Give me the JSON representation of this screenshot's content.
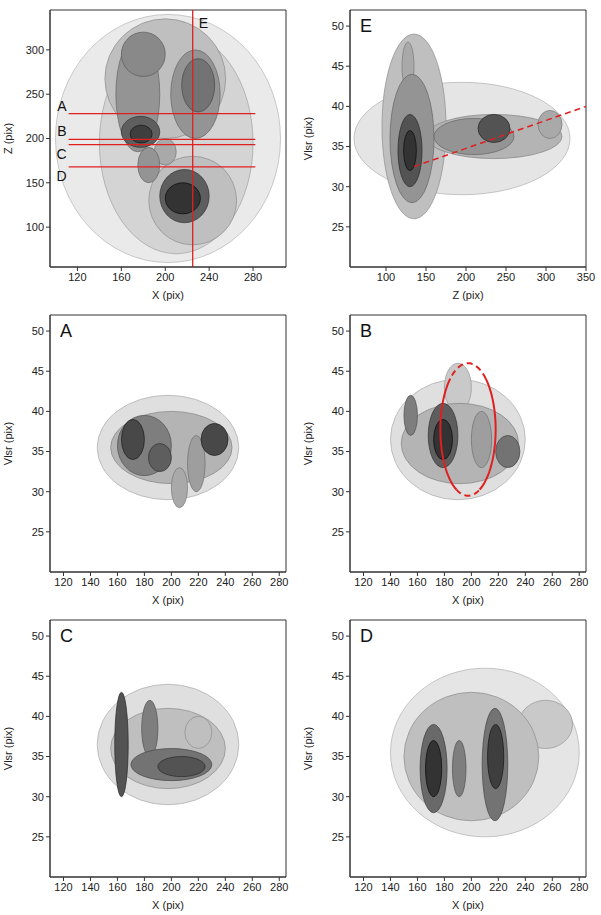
{
  "chart_data": [
    {
      "type": "map",
      "x_label": "X (pix)",
      "y_label": "Z (pix)",
      "xlim": [
        95,
        310
      ],
      "ylim": [
        55,
        345
      ],
      "xticks": [
        120,
        160,
        200,
        240,
        280
      ],
      "yticks": [
        100,
        150,
        200,
        250,
        300
      ],
      "emission": [
        {
          "x": [
            100,
            305
          ],
          "y": [
            60,
            340
          ],
          "intensity": 0.1
        },
        {
          "x": [
            140,
            280
          ],
          "y": [
            70,
            320
          ],
          "intensity": 0.2
        },
        {
          "x": [
            145,
            255
          ],
          "y": [
            200,
            335
          ],
          "intensity": 0.3
        },
        {
          "x": [
            185,
            265
          ],
          "y": [
            80,
            180
          ],
          "intensity": 0.3
        },
        {
          "x": [
            190,
            210
          ],
          "y": [
            170,
            200
          ],
          "intensity": 0.4
        },
        {
          "x": [
            175,
            195
          ],
          "y": [
            150,
            190
          ],
          "intensity": 0.5
        },
        {
          "x": [
            155,
            195
          ],
          "y": [
            185,
            315
          ],
          "intensity": 0.5
        },
        {
          "x": [
            205,
            250
          ],
          "y": [
            200,
            300
          ],
          "intensity": 0.5
        },
        {
          "x": [
            160,
            200
          ],
          "y": [
            270,
            320
          ],
          "intensity": 0.55
        },
        {
          "x": [
            215,
            245
          ],
          "y": [
            230,
            290
          ],
          "intensity": 0.65
        },
        {
          "x": [
            160,
            195
          ],
          "y": [
            190,
            225
          ],
          "intensity": 0.75
        },
        {
          "x": [
            195,
            240
          ],
          "y": [
            105,
            165
          ],
          "intensity": 0.75
        },
        {
          "x": [
            168,
            188
          ],
          "y": [
            195,
            215
          ],
          "intensity": 0.9
        },
        {
          "x": [
            200,
            232
          ],
          "y": [
            115,
            150
          ],
          "intensity": 0.95
        }
      ],
      "cuts": [
        {
          "label": "A",
          "axis": "y",
          "value": 228,
          "extent": [
            112,
            282
          ],
          "color": "#e02020"
        },
        {
          "label": "B",
          "axis": "y",
          "value": 199,
          "extent": [
            112,
            282
          ],
          "color": "#e02020"
        },
        {
          "label": "C",
          "axis": "y",
          "value": 193,
          "extent": [
            112,
            282
          ],
          "color": "#e02020"
        },
        {
          "label": "D",
          "axis": "y",
          "value": 168,
          "extent": [
            112,
            282
          ],
          "color": "#e02020"
        },
        {
          "label": "E",
          "axis": "x",
          "value": 225,
          "color": "#e02020"
        }
      ]
    },
    {
      "type": "pv_diagram",
      "label": "E",
      "x_label": "Z (pix)",
      "y_label": "Vlsr (pix)",
      "xlim": [
        55,
        350
      ],
      "ylim": [
        20,
        52
      ],
      "xticks": [
        100,
        150,
        200,
        250,
        300,
        350
      ],
      "yticks": [
        25,
        30,
        35,
        40,
        45,
        50
      ],
      "emission": [
        {
          "x": [
            60,
            330
          ],
          "y": [
            29,
            43
          ],
          "intensity": 0.12
        },
        {
          "x": [
            95,
            175
          ],
          "y": [
            26,
            49
          ],
          "intensity": 0.3
        },
        {
          "x": [
            150,
            320
          ],
          "y": [
            33.5,
            39
          ],
          "intensity": 0.35
        },
        {
          "x": [
            120,
            135
          ],
          "y": [
            42,
            48
          ],
          "intensity": 0.4
        },
        {
          "x": [
            290,
            320
          ],
          "y": [
            36,
            39.5
          ],
          "intensity": 0.4
        },
        {
          "x": [
            105,
            160
          ],
          "y": [
            28,
            44
          ],
          "intensity": 0.5
        },
        {
          "x": [
            160,
            260
          ],
          "y": [
            34,
            38.5
          ],
          "intensity": 0.5
        },
        {
          "x": [
            115,
            145
          ],
          "y": [
            30,
            39
          ],
          "intensity": 0.8
        },
        {
          "x": [
            215,
            255
          ],
          "y": [
            35.5,
            39
          ],
          "intensity": 0.8
        },
        {
          "x": [
            122,
            138
          ],
          "y": [
            32,
            37
          ],
          "intensity": 0.95
        }
      ],
      "lines": [
        {
          "x": [
            135,
            350
          ],
          "y": [
            32.5,
            40
          ],
          "color": "#e02020",
          "line_style": "dashed"
        }
      ]
    },
    {
      "type": "pv_diagram",
      "label": "A",
      "x_label": "X (pix)",
      "y_label": "Vlsr (pix)",
      "xlim": [
        110,
        285
      ],
      "ylim": [
        20,
        52
      ],
      "xticks": [
        120,
        140,
        160,
        180,
        200,
        220,
        240,
        260,
        280
      ],
      "yticks": [
        25,
        30,
        35,
        40,
        45,
        50
      ],
      "emission": [
        {
          "x": [
            145,
            250
          ],
          "y": [
            29,
            42
          ],
          "intensity": 0.15
        },
        {
          "x": [
            155,
            245
          ],
          "y": [
            31,
            40
          ],
          "intensity": 0.35
        },
        {
          "x": [
            200,
            212
          ],
          "y": [
            28,
            33
          ],
          "intensity": 0.4
        },
        {
          "x": [
            212,
            225
          ],
          "y": [
            30,
            37
          ],
          "intensity": 0.45
        },
        {
          "x": [
            160,
            200
          ],
          "y": [
            32,
            39.5
          ],
          "intensity": 0.6
        },
        {
          "x": [
            183,
            200
          ],
          "y": [
            32.5,
            36
          ],
          "intensity": 0.75
        },
        {
          "x": [
            163,
            180
          ],
          "y": [
            34,
            39
          ],
          "intensity": 0.85
        },
        {
          "x": [
            222,
            242
          ],
          "y": [
            34.5,
            38.5
          ],
          "intensity": 0.85
        }
      ]
    },
    {
      "type": "pv_diagram",
      "label": "B",
      "x_label": "X (pix)",
      "y_label": "Vlsr (pix)",
      "xlim": [
        110,
        285
      ],
      "ylim": [
        20,
        52
      ],
      "xticks": [
        120,
        140,
        160,
        180,
        200,
        220,
        240,
        260,
        280
      ],
      "yticks": [
        25,
        30,
        35,
        40,
        45,
        50
      ],
      "emission": [
        {
          "x": [
            140,
            240
          ],
          "y": [
            29,
            44
          ],
          "intensity": 0.15
        },
        {
          "x": [
            180,
            200
          ],
          "y": [
            40,
            46
          ],
          "intensity": 0.25
        },
        {
          "x": [
            148,
            235
          ],
          "y": [
            31,
            41
          ],
          "intensity": 0.35
        },
        {
          "x": [
            200,
            215
          ],
          "y": [
            33,
            40
          ],
          "intensity": 0.45
        },
        {
          "x": [
            150,
            160
          ],
          "y": [
            37,
            42
          ],
          "intensity": 0.6
        },
        {
          "x": [
            218,
            236
          ],
          "y": [
            33,
            37
          ],
          "intensity": 0.65
        },
        {
          "x": [
            168,
            190
          ],
          "y": [
            33,
            41
          ],
          "intensity": 0.75
        },
        {
          "x": [
            172,
            186
          ],
          "y": [
            34,
            39
          ],
          "intensity": 0.95
        }
      ],
      "ellipse": {
        "x": [
          177,
          218
        ],
        "y": [
          29.5,
          46
        ],
        "color": "#e02020",
        "line_style": "dashed"
      }
    },
    {
      "type": "pv_diagram",
      "label": "C",
      "x_label": "X (pix)",
      "y_label": "Vlsr (pix)",
      "xlim": [
        110,
        285
      ],
      "ylim": [
        20,
        52
      ],
      "xticks": [
        120,
        140,
        160,
        180,
        200,
        220,
        240,
        260,
        280
      ],
      "yticks": [
        25,
        30,
        35,
        40,
        45,
        50
      ],
      "emission": [
        {
          "x": [
            145,
            250
          ],
          "y": [
            29,
            44
          ],
          "intensity": 0.15
        },
        {
          "x": [
            155,
            240
          ],
          "y": [
            31,
            41
          ],
          "intensity": 0.3
        },
        {
          "x": [
            210,
            230
          ],
          "y": [
            36,
            40
          ],
          "intensity": 0.3
        },
        {
          "x": [
            178,
            190
          ],
          "y": [
            35,
            42
          ],
          "intensity": 0.6
        },
        {
          "x": [
            170,
            230
          ],
          "y": [
            32,
            36
          ],
          "intensity": 0.65
        },
        {
          "x": [
            190,
            225
          ],
          "y": [
            32.5,
            35
          ],
          "intensity": 0.8
        },
        {
          "x": [
            158,
            168
          ],
          "y": [
            30,
            43
          ],
          "intensity": 0.8
        }
      ]
    },
    {
      "type": "pv_diagram",
      "label": "D",
      "x_label": "X (pix)",
      "y_label": "Vlsr (pix)",
      "xlim": [
        110,
        285
      ],
      "ylim": [
        20,
        52
      ],
      "xticks": [
        120,
        140,
        160,
        180,
        200,
        220,
        240,
        260,
        280
      ],
      "yticks": [
        25,
        30,
        35,
        40,
        45,
        50
      ],
      "emission": [
        {
          "x": [
            140,
            280
          ],
          "y": [
            25,
            46
          ],
          "intensity": 0.12
        },
        {
          "x": [
            235,
            275
          ],
          "y": [
            36,
            42
          ],
          "intensity": 0.25
        },
        {
          "x": [
            150,
            250
          ],
          "y": [
            27,
            43
          ],
          "intensity": 0.3
        },
        {
          "x": [
            186,
            196
          ],
          "y": [
            30,
            37
          ],
          "intensity": 0.6
        },
        {
          "x": [
            208,
            227
          ],
          "y": [
            27,
            41
          ],
          "intensity": 0.65
        },
        {
          "x": [
            162,
            182
          ],
          "y": [
            28,
            39
          ],
          "intensity": 0.7
        },
        {
          "x": [
            212,
            224
          ],
          "y": [
            31,
            39
          ],
          "intensity": 0.9
        },
        {
          "x": [
            166,
            178
          ],
          "y": [
            30,
            37
          ],
          "intensity": 0.95
        }
      ]
    }
  ]
}
